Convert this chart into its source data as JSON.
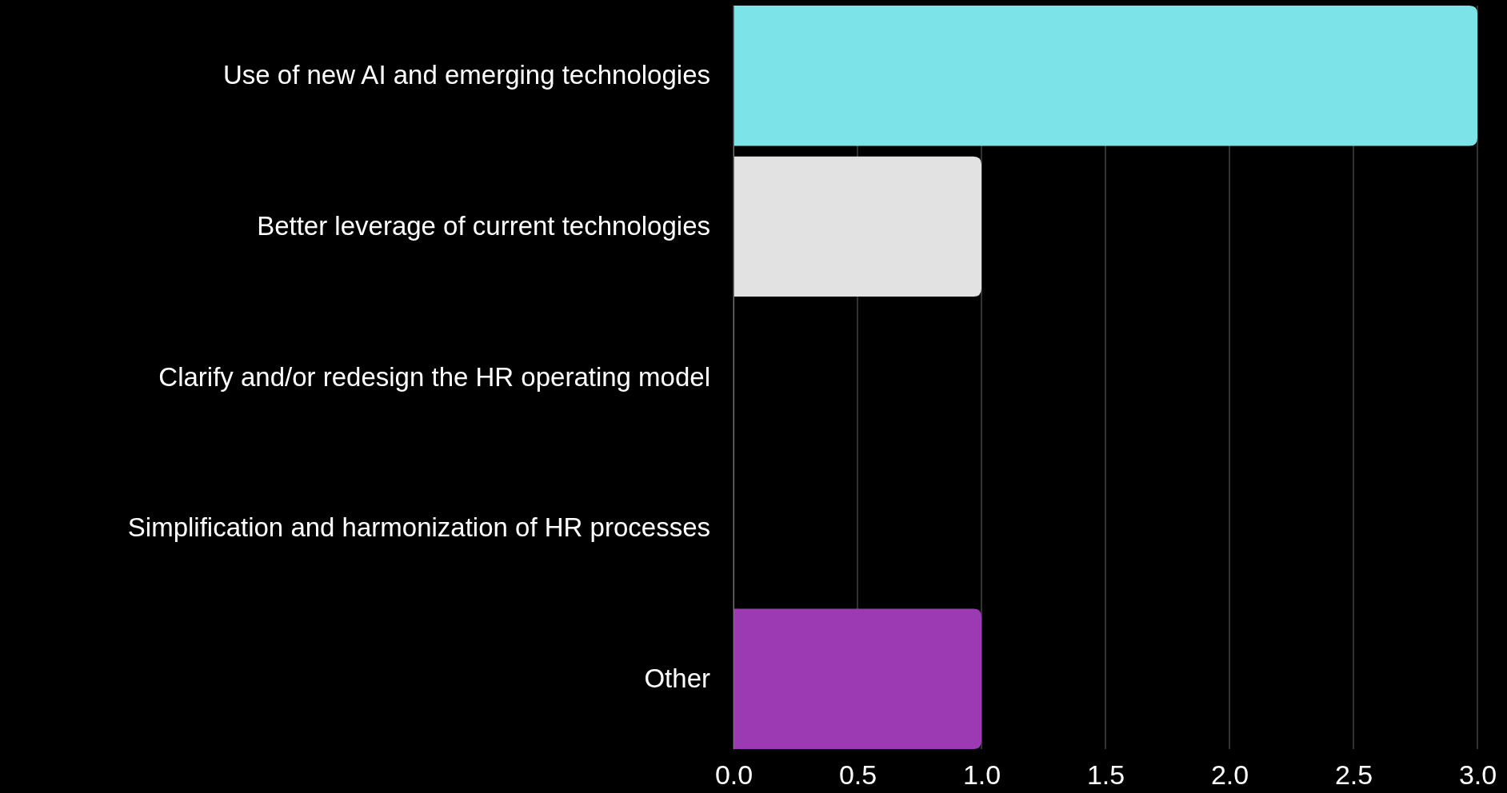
{
  "chart_data": {
    "type": "bar",
    "orientation": "horizontal",
    "categories": [
      "Use of new AI and emerging technologies",
      "Better leverage of current technologies",
      "Clarify and/or redesign the HR operating model",
      "Simplification and harmonization of HR processes",
      "Other"
    ],
    "values": [
      3,
      1,
      0,
      0,
      1
    ],
    "colors": [
      "#7ce3e8",
      "#e2e2e2",
      "#7ce3e8",
      "#7ce3e8",
      "#9b3ab3"
    ],
    "xlim": [
      0,
      3
    ],
    "xticks": [
      {
        "value": 0,
        "label": "0.0"
      },
      {
        "value": 0.5,
        "label": "0.5"
      },
      {
        "value": 1,
        "label": "1.0"
      },
      {
        "value": 1.5,
        "label": "1.5"
      },
      {
        "value": 2,
        "label": "2.0"
      },
      {
        "value": 2.5,
        "label": "2.5"
      },
      {
        "value": 3,
        "label": "3.0"
      }
    ],
    "grid": "x"
  }
}
